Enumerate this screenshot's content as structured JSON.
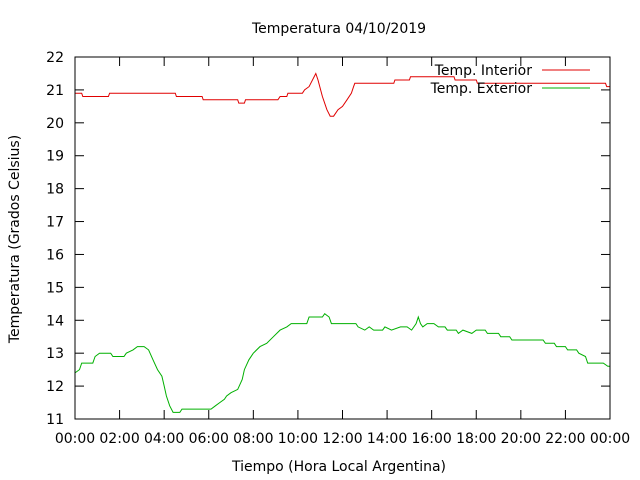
{
  "chart_data": {
    "type": "line",
    "title": "Temperatura 04/10/2019",
    "xlabel": "Tiempo (Hora Local Argentina)",
    "ylabel": "Temperatura (Grados Celsius)",
    "x_unit": "hours",
    "xlim": [
      0,
      24
    ],
    "ylim": [
      11,
      22
    ],
    "x_ticks": [
      0,
      2,
      4,
      6,
      8,
      10,
      12,
      14,
      16,
      18,
      20,
      22,
      24
    ],
    "x_tick_labels": [
      "00:00",
      "02:00",
      "04:00",
      "06:00",
      "08:00",
      "10:00",
      "12:00",
      "14:00",
      "16:00",
      "18:00",
      "20:00",
      "22:00",
      "00:00"
    ],
    "y_ticks": [
      11,
      12,
      13,
      14,
      15,
      16,
      17,
      18,
      19,
      20,
      21,
      22
    ],
    "y_tick_labels": [
      "11",
      "12",
      "13",
      "14",
      "15",
      "16",
      "17",
      "18",
      "19",
      "20",
      "21",
      "22"
    ],
    "grid": false,
    "legend_position": "top-right",
    "series": [
      {
        "name": "Temp. Interior",
        "color": "#e00000",
        "points": [
          [
            0,
            20.9
          ],
          [
            0.3,
            20.9
          ],
          [
            0.35,
            20.8
          ],
          [
            1.5,
            20.8
          ],
          [
            1.55,
            20.9
          ],
          [
            4.5,
            20.9
          ],
          [
            4.55,
            20.8
          ],
          [
            5.7,
            20.8
          ],
          [
            5.75,
            20.7
          ],
          [
            7.3,
            20.7
          ],
          [
            7.35,
            20.6
          ],
          [
            7.6,
            20.6
          ],
          [
            7.65,
            20.7
          ],
          [
            9.1,
            20.7
          ],
          [
            9.2,
            20.8
          ],
          [
            9.5,
            20.8
          ],
          [
            9.55,
            20.9
          ],
          [
            10.2,
            20.9
          ],
          [
            10.3,
            21.0
          ],
          [
            10.5,
            21.1
          ],
          [
            10.8,
            21.5
          ],
          [
            10.9,
            21.3
          ],
          [
            11.1,
            20.8
          ],
          [
            11.3,
            20.4
          ],
          [
            11.45,
            20.2
          ],
          [
            11.6,
            20.2
          ],
          [
            11.8,
            20.4
          ],
          [
            12.0,
            20.5
          ],
          [
            12.2,
            20.7
          ],
          [
            12.4,
            20.9
          ],
          [
            12.5,
            21.1
          ],
          [
            12.55,
            21.2
          ],
          [
            14.3,
            21.2
          ],
          [
            14.35,
            21.3
          ],
          [
            15.0,
            21.3
          ],
          [
            15.05,
            21.4
          ],
          [
            17.0,
            21.4
          ],
          [
            17.05,
            21.3
          ],
          [
            18.0,
            21.3
          ],
          [
            18.05,
            21.2
          ],
          [
            23.8,
            21.2
          ],
          [
            23.85,
            21.1
          ],
          [
            24,
            21.1
          ]
        ]
      },
      {
        "name": "Temp. Exterior",
        "color": "#00b000",
        "points": [
          [
            0,
            12.4
          ],
          [
            0.2,
            12.5
          ],
          [
            0.3,
            12.7
          ],
          [
            0.8,
            12.7
          ],
          [
            0.9,
            12.9
          ],
          [
            1.1,
            13.0
          ],
          [
            1.6,
            13.0
          ],
          [
            1.7,
            12.9
          ],
          [
            2.2,
            12.9
          ],
          [
            2.3,
            13.0
          ],
          [
            2.6,
            13.1
          ],
          [
            2.8,
            13.2
          ],
          [
            3.1,
            13.2
          ],
          [
            3.3,
            13.1
          ],
          [
            3.5,
            12.8
          ],
          [
            3.7,
            12.5
          ],
          [
            3.9,
            12.3
          ],
          [
            4.0,
            12.0
          ],
          [
            4.1,
            11.7
          ],
          [
            4.25,
            11.4
          ],
          [
            4.4,
            11.2
          ],
          [
            4.7,
            11.2
          ],
          [
            4.8,
            11.3
          ],
          [
            6.1,
            11.3
          ],
          [
            6.3,
            11.4
          ],
          [
            6.5,
            11.5
          ],
          [
            6.7,
            11.6
          ],
          [
            6.8,
            11.7
          ],
          [
            7.0,
            11.8
          ],
          [
            7.3,
            11.9
          ],
          [
            7.5,
            12.2
          ],
          [
            7.6,
            12.5
          ],
          [
            7.8,
            12.8
          ],
          [
            8.0,
            13.0
          ],
          [
            8.3,
            13.2
          ],
          [
            8.6,
            13.3
          ],
          [
            8.9,
            13.5
          ],
          [
            9.2,
            13.7
          ],
          [
            9.5,
            13.8
          ],
          [
            9.7,
            13.9
          ],
          [
            10.4,
            13.9
          ],
          [
            10.5,
            14.1
          ],
          [
            11.1,
            14.1
          ],
          [
            11.2,
            14.2
          ],
          [
            11.4,
            14.1
          ],
          [
            11.5,
            13.9
          ],
          [
            12.6,
            13.9
          ],
          [
            12.7,
            13.8
          ],
          [
            13.0,
            13.7
          ],
          [
            13.2,
            13.8
          ],
          [
            13.4,
            13.7
          ],
          [
            13.8,
            13.7
          ],
          [
            13.9,
            13.8
          ],
          [
            14.2,
            13.7
          ],
          [
            14.6,
            13.8
          ],
          [
            14.9,
            13.8
          ],
          [
            15.1,
            13.7
          ],
          [
            15.3,
            13.9
          ],
          [
            15.4,
            14.1
          ],
          [
            15.5,
            13.9
          ],
          [
            15.6,
            13.8
          ],
          [
            15.8,
            13.9
          ],
          [
            16.1,
            13.9
          ],
          [
            16.3,
            13.8
          ],
          [
            16.6,
            13.8
          ],
          [
            16.7,
            13.7
          ],
          [
            17.1,
            13.7
          ],
          [
            17.2,
            13.6
          ],
          [
            17.4,
            13.7
          ],
          [
            17.8,
            13.6
          ],
          [
            18.0,
            13.7
          ],
          [
            18.4,
            13.7
          ],
          [
            18.5,
            13.6
          ],
          [
            19.0,
            13.6
          ],
          [
            19.1,
            13.5
          ],
          [
            19.5,
            13.5
          ],
          [
            19.6,
            13.4
          ],
          [
            21.0,
            13.4
          ],
          [
            21.1,
            13.3
          ],
          [
            21.5,
            13.3
          ],
          [
            21.6,
            13.2
          ],
          [
            22.0,
            13.2
          ],
          [
            22.1,
            13.1
          ],
          [
            22.5,
            13.1
          ],
          [
            22.6,
            13.0
          ],
          [
            22.9,
            12.9
          ],
          [
            23.0,
            12.7
          ],
          [
            23.7,
            12.7
          ],
          [
            23.9,
            12.6
          ],
          [
            24,
            12.6
          ]
        ]
      }
    ]
  }
}
